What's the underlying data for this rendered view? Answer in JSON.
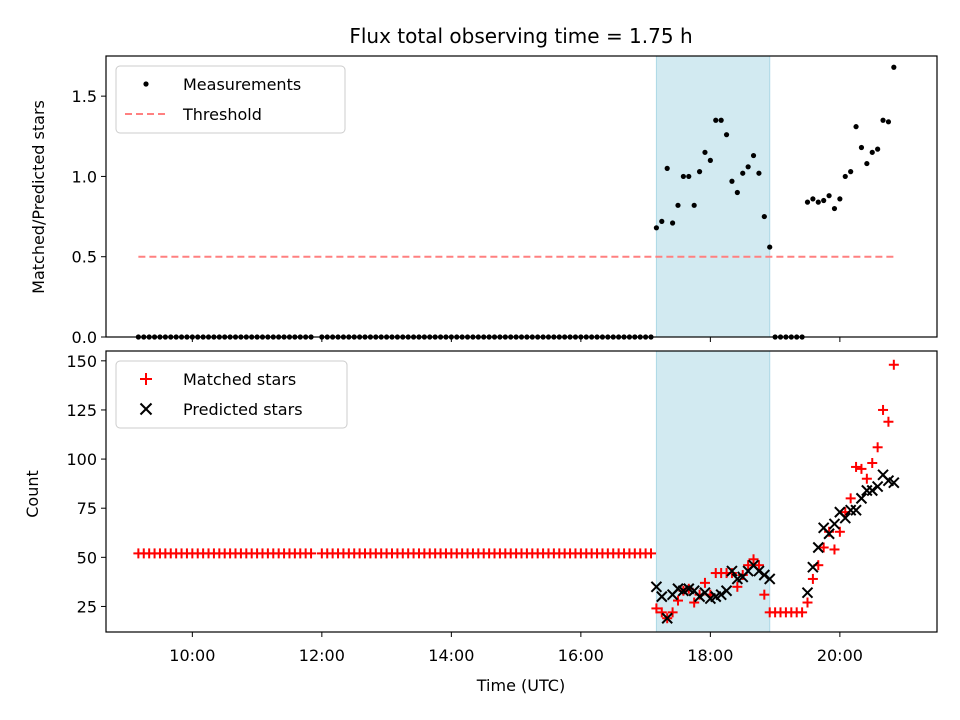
{
  "chart_data": [
    {
      "type": "scatter",
      "title": "Flux total observing time = 1.75 h",
      "xlabel": "",
      "ylabel": "Matched/Predicted stars",
      "ylim": [
        0,
        1.75
      ],
      "yticks": [
        "0.0",
        "0.5",
        "1.0",
        "1.5"
      ],
      "legend_position": "upper left",
      "shaded_interval": [
        "17:10",
        "18:55"
      ],
      "shade_color": "#add8e6",
      "series": [
        {
          "name": "Measurements",
          "marker": "dot",
          "color": "#000000",
          "points": [
            [
              "17:10",
              0.68
            ],
            [
              "17:15",
              0.72
            ],
            [
              "17:20",
              1.05
            ],
            [
              "17:25",
              0.71
            ],
            [
              "17:30",
              0.82
            ],
            [
              "17:35",
              1.0
            ],
            [
              "17:40",
              1.0
            ],
            [
              "17:45",
              0.82
            ],
            [
              "17:50",
              1.03
            ],
            [
              "17:55",
              1.15
            ],
            [
              "18:00",
              1.1
            ],
            [
              "18:05",
              1.35
            ],
            [
              "18:10",
              1.35
            ],
            [
              "18:15",
              1.26
            ],
            [
              "18:20",
              0.97
            ],
            [
              "18:25",
              0.9
            ],
            [
              "18:30",
              1.02
            ],
            [
              "18:35",
              1.06
            ],
            [
              "18:40",
              1.13
            ],
            [
              "18:45",
              1.02
            ],
            [
              "18:50",
              0.75
            ],
            [
              "18:55",
              0.56
            ],
            [
              "19:30",
              0.84
            ],
            [
              "19:35",
              0.86
            ],
            [
              "19:40",
              0.84
            ],
            [
              "19:45",
              0.85
            ],
            [
              "19:50",
              0.88
            ],
            [
              "19:55",
              0.8
            ],
            [
              "20:00",
              0.86
            ],
            [
              "20:05",
              1.0
            ],
            [
              "20:10",
              1.03
            ],
            [
              "20:15",
              1.31
            ],
            [
              "20:20",
              1.18
            ],
            [
              "20:25",
              1.08
            ],
            [
              "20:30",
              1.15
            ],
            [
              "20:35",
              1.17
            ],
            [
              "20:40",
              1.35
            ],
            [
              "20:45",
              1.34
            ],
            [
              "20:50",
              1.68
            ]
          ],
          "zero_runs": [
            [
              "09:10",
              "11:50",
              5
            ],
            [
              "12:00",
              "17:05",
              5
            ],
            [
              "19:00",
              "19:25",
              5
            ]
          ]
        },
        {
          "name": "Threshold",
          "style": "dashed",
          "color": "#ff8080",
          "points": [
            [
              "09:10",
              0.5
            ],
            [
              "20:50",
              0.5
            ]
          ]
        }
      ]
    },
    {
      "type": "scatter",
      "title": "",
      "xlabel": "Time (UTC)",
      "ylabel": "Count",
      "ylim": [
        12,
        155
      ],
      "yticks": [
        "25",
        "50",
        "75",
        "100",
        "125",
        "150"
      ],
      "xticks": [
        "10:00",
        "12:00",
        "14:00",
        "16:00",
        "18:00",
        "20:00"
      ],
      "xlim": [
        "08:40",
        "21:30"
      ],
      "legend_position": "upper left",
      "shaded_interval": [
        "17:10",
        "18:55"
      ],
      "shade_color": "#add8e6",
      "series": [
        {
          "name": "Matched stars",
          "marker": "plus",
          "color": "#ff0000",
          "runs": [
            [
              "09:10",
              "11:50",
              5,
              52
            ],
            [
              "12:00",
              "17:05",
              5,
              52
            ],
            [
              "19:00",
              "19:25",
              5,
              22
            ]
          ],
          "points": [
            [
              "17:10",
              24
            ],
            [
              "17:15",
              22
            ],
            [
              "17:20",
              19
            ],
            [
              "17:25",
              22
            ],
            [
              "17:30",
              28
            ],
            [
              "17:35",
              33
            ],
            [
              "17:40",
              34
            ],
            [
              "17:45",
              27
            ],
            [
              "17:50",
              31
            ],
            [
              "17:55",
              37
            ],
            [
              "18:00",
              31
            ],
            [
              "18:05",
              42
            ],
            [
              "18:10",
              42
            ],
            [
              "18:15",
              42
            ],
            [
              "18:20",
              42
            ],
            [
              "18:25",
              35
            ],
            [
              "18:30",
              41
            ],
            [
              "18:35",
              46
            ],
            [
              "18:40",
              49
            ],
            [
              "18:45",
              46
            ],
            [
              "18:50",
              31
            ],
            [
              "18:55",
              22
            ],
            [
              "19:30",
              27
            ],
            [
              "19:35",
              39
            ],
            [
              "19:40",
              46
            ],
            [
              "19:45",
              55
            ],
            [
              "19:50",
              63
            ],
            [
              "19:55",
              54
            ],
            [
              "20:00",
              63
            ],
            [
              "20:05",
              73
            ],
            [
              "20:10",
              80
            ],
            [
              "20:15",
              96
            ],
            [
              "20:20",
              95
            ],
            [
              "20:25",
              90
            ],
            [
              "20:30",
              98
            ],
            [
              "20:35",
              106
            ],
            [
              "20:40",
              125
            ],
            [
              "20:45",
              119
            ],
            [
              "20:50",
              148
            ]
          ]
        },
        {
          "name": "Predicted stars",
          "marker": "x",
          "color": "#000000",
          "points": [
            [
              "17:10",
              35
            ],
            [
              "17:15",
              30
            ],
            [
              "17:20",
              19
            ],
            [
              "17:25",
              31
            ],
            [
              "17:30",
              34
            ],
            [
              "17:35",
              33
            ],
            [
              "17:40",
              34
            ],
            [
              "17:45",
              33
            ],
            [
              "17:50",
              30
            ],
            [
              "17:55",
              32
            ],
            [
              "18:00",
              29
            ],
            [
              "18:05",
              30
            ],
            [
              "18:10",
              31
            ],
            [
              "18:15",
              33
            ],
            [
              "18:20",
              43
            ],
            [
              "18:25",
              39
            ],
            [
              "18:30",
              40
            ],
            [
              "18:35",
              43
            ],
            [
              "18:40",
              46
            ],
            [
              "18:45",
              43
            ],
            [
              "18:50",
              41
            ],
            [
              "18:55",
              39
            ],
            [
              "19:30",
              32
            ],
            [
              "19:35",
              45
            ],
            [
              "19:40",
              55
            ],
            [
              "19:45",
              65
            ],
            [
              "19:50",
              62
            ],
            [
              "19:55",
              67
            ],
            [
              "20:00",
              73
            ],
            [
              "20:05",
              70
            ],
            [
              "20:10",
              74
            ],
            [
              "20:15",
              74
            ],
            [
              "20:20",
              80
            ],
            [
              "20:25",
              84
            ],
            [
              "20:30",
              84
            ],
            [
              "20:35",
              86
            ],
            [
              "20:40",
              92
            ],
            [
              "20:45",
              89
            ],
            [
              "20:50",
              88
            ]
          ]
        }
      ]
    }
  ]
}
